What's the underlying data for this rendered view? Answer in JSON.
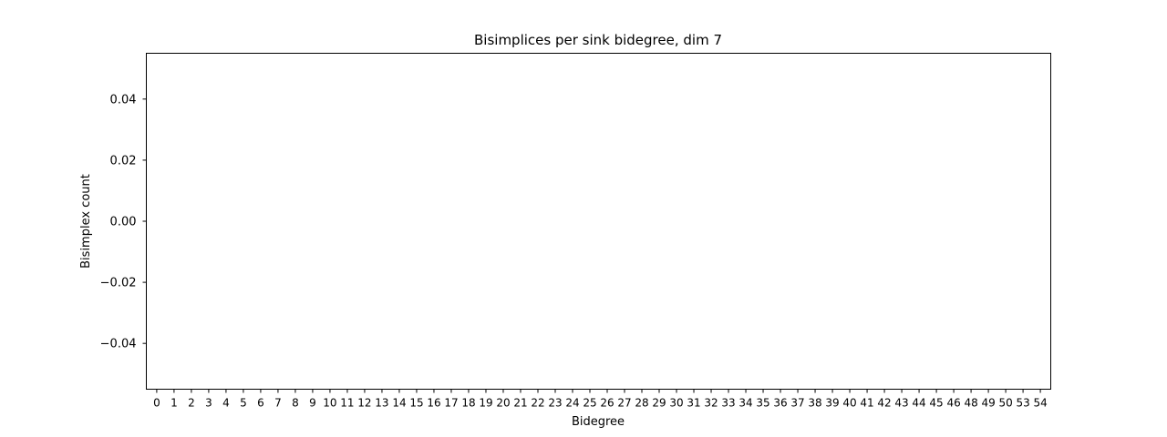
{
  "chart_data": {
    "type": "bar",
    "title": "Bisimplices per sink bidegree, dim 7",
    "xlabel": "Bidegree",
    "ylabel": "Bisimplex count",
    "categories": [
      "0",
      "1",
      "2",
      "3",
      "4",
      "5",
      "6",
      "7",
      "8",
      "9",
      "10",
      "11",
      "12",
      "13",
      "14",
      "15",
      "16",
      "17",
      "18",
      "19",
      "20",
      "21",
      "22",
      "23",
      "24",
      "25",
      "26",
      "27",
      "28",
      "29",
      "30",
      "31",
      "32",
      "33",
      "34",
      "35",
      "36",
      "37",
      "38",
      "39",
      "40",
      "41",
      "42",
      "43",
      "44",
      "45",
      "46",
      "48",
      "49",
      "50",
      "53",
      "54"
    ],
    "values": [
      0,
      0,
      0,
      0,
      0,
      0,
      0,
      0,
      0,
      0,
      0,
      0,
      0,
      0,
      0,
      0,
      0,
      0,
      0,
      0,
      0,
      0,
      0,
      0,
      0,
      0,
      0,
      0,
      0,
      0,
      0,
      0,
      0,
      0,
      0,
      0,
      0,
      0,
      0,
      0,
      0,
      0,
      0,
      0,
      0,
      0,
      0,
      0,
      0,
      0,
      0,
      0
    ],
    "ylim": [
      -0.055,
      0.055
    ],
    "yticks": [
      -0.04,
      -0.02,
      0.0,
      0.02,
      0.04
    ],
    "ytick_labels": [
      "−0.04",
      "−0.02",
      "0.00",
      "0.02",
      "0.04"
    ],
    "grid": false,
    "legend": "none",
    "bar_color": "#1f77b4"
  }
}
